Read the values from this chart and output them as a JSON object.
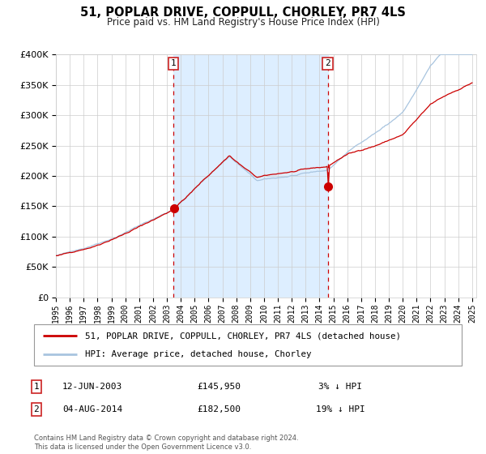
{
  "title": "51, POPLAR DRIVE, COPPULL, CHORLEY, PR7 4LS",
  "subtitle": "Price paid vs. HM Land Registry's House Price Index (HPI)",
  "legend_line1": "51, POPLAR DRIVE, COPPULL, CHORLEY, PR7 4LS (detached house)",
  "legend_line2": "HPI: Average price, detached house, Chorley",
  "annotation1_date": "12-JUN-2003",
  "annotation1_price": "£145,950",
  "annotation1_hpi": "3% ↓ HPI",
  "annotation2_date": "04-AUG-2014",
  "annotation2_price": "£182,500",
  "annotation2_hpi": "19% ↓ HPI",
  "event1_year": 2003.45,
  "event1_value": 145950,
  "event2_year": 2014.59,
  "event2_value": 182500,
  "hpi_color": "#a8c4df",
  "price_color": "#cc0000",
  "bg_shading_color": "#ddeeff",
  "ylim": [
    0,
    400000
  ],
  "yticks": [
    0,
    50000,
    100000,
    150000,
    200000,
    250000,
    300000,
    350000,
    400000
  ],
  "start_year": 1995,
  "end_year": 2025,
  "copyright_text": "Contains HM Land Registry data © Crown copyright and database right 2024.\nThis data is licensed under the Open Government Licence v3.0."
}
